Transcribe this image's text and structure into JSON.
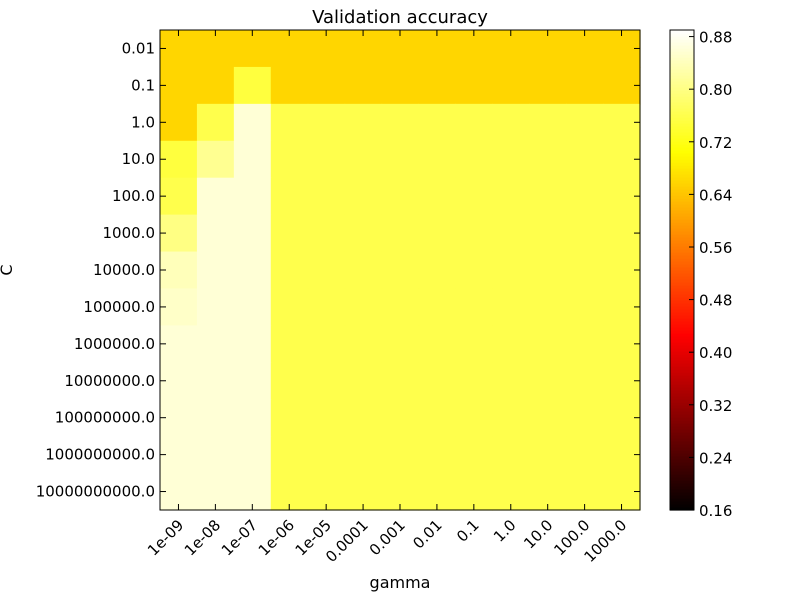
{
  "chart_data": {
    "type": "heatmap",
    "title": "Validation accuracy",
    "xlabel": "gamma",
    "ylabel": "C",
    "x_categories": [
      "1e-09",
      "1e-08",
      "1e-07",
      "1e-06",
      "1e-05",
      "0.0001",
      "0.001",
      "0.01",
      "0.1",
      "1.0",
      "10.0",
      "100.0",
      "1000.0"
    ],
    "y_categories": [
      "0.01",
      "0.1",
      "1.0",
      "10.0",
      "100.0",
      "1000.0",
      "10000.0",
      "100000.0",
      "1000000.0",
      "10000000.0",
      "100000000.0",
      "1000000000.0",
      "10000000000.0"
    ],
    "colormap": "hot",
    "colorbar": {
      "min": 0.16,
      "max": 0.89,
      "tick_labels": [
        "0.16",
        "0.24",
        "0.32",
        "0.40",
        "0.48",
        "0.56",
        "0.64",
        "0.72",
        "0.80",
        "0.88"
      ]
    },
    "values": [
      [
        0.66,
        0.66,
        0.66,
        0.66,
        0.66,
        0.66,
        0.66,
        0.66,
        0.66,
        0.66,
        0.66,
        0.66,
        0.66
      ],
      [
        0.66,
        0.66,
        0.75,
        0.66,
        0.66,
        0.66,
        0.66,
        0.66,
        0.66,
        0.66,
        0.66,
        0.66,
        0.66
      ],
      [
        0.66,
        0.76,
        0.86,
        0.76,
        0.76,
        0.76,
        0.76,
        0.76,
        0.76,
        0.76,
        0.76,
        0.76,
        0.76
      ],
      [
        0.75,
        0.81,
        0.86,
        0.76,
        0.76,
        0.76,
        0.76,
        0.76,
        0.76,
        0.76,
        0.76,
        0.76,
        0.76
      ],
      [
        0.76,
        0.86,
        0.86,
        0.76,
        0.76,
        0.76,
        0.76,
        0.76,
        0.76,
        0.76,
        0.76,
        0.76,
        0.76
      ],
      [
        0.8,
        0.86,
        0.86,
        0.76,
        0.76,
        0.76,
        0.76,
        0.76,
        0.76,
        0.76,
        0.76,
        0.76,
        0.76
      ],
      [
        0.84,
        0.86,
        0.86,
        0.76,
        0.76,
        0.76,
        0.76,
        0.76,
        0.76,
        0.76,
        0.76,
        0.76,
        0.76
      ],
      [
        0.85,
        0.86,
        0.86,
        0.76,
        0.76,
        0.76,
        0.76,
        0.76,
        0.76,
        0.76,
        0.76,
        0.76,
        0.76
      ],
      [
        0.86,
        0.86,
        0.86,
        0.76,
        0.76,
        0.76,
        0.76,
        0.76,
        0.76,
        0.76,
        0.76,
        0.76,
        0.76
      ],
      [
        0.86,
        0.86,
        0.86,
        0.76,
        0.76,
        0.76,
        0.76,
        0.76,
        0.76,
        0.76,
        0.76,
        0.76,
        0.76
      ],
      [
        0.86,
        0.86,
        0.86,
        0.76,
        0.76,
        0.76,
        0.76,
        0.76,
        0.76,
        0.76,
        0.76,
        0.76,
        0.76
      ],
      [
        0.86,
        0.86,
        0.86,
        0.76,
        0.76,
        0.76,
        0.76,
        0.76,
        0.76,
        0.76,
        0.76,
        0.76,
        0.76
      ],
      [
        0.86,
        0.86,
        0.86,
        0.76,
        0.76,
        0.76,
        0.76,
        0.76,
        0.76,
        0.76,
        0.76,
        0.76,
        0.76
      ]
    ]
  }
}
